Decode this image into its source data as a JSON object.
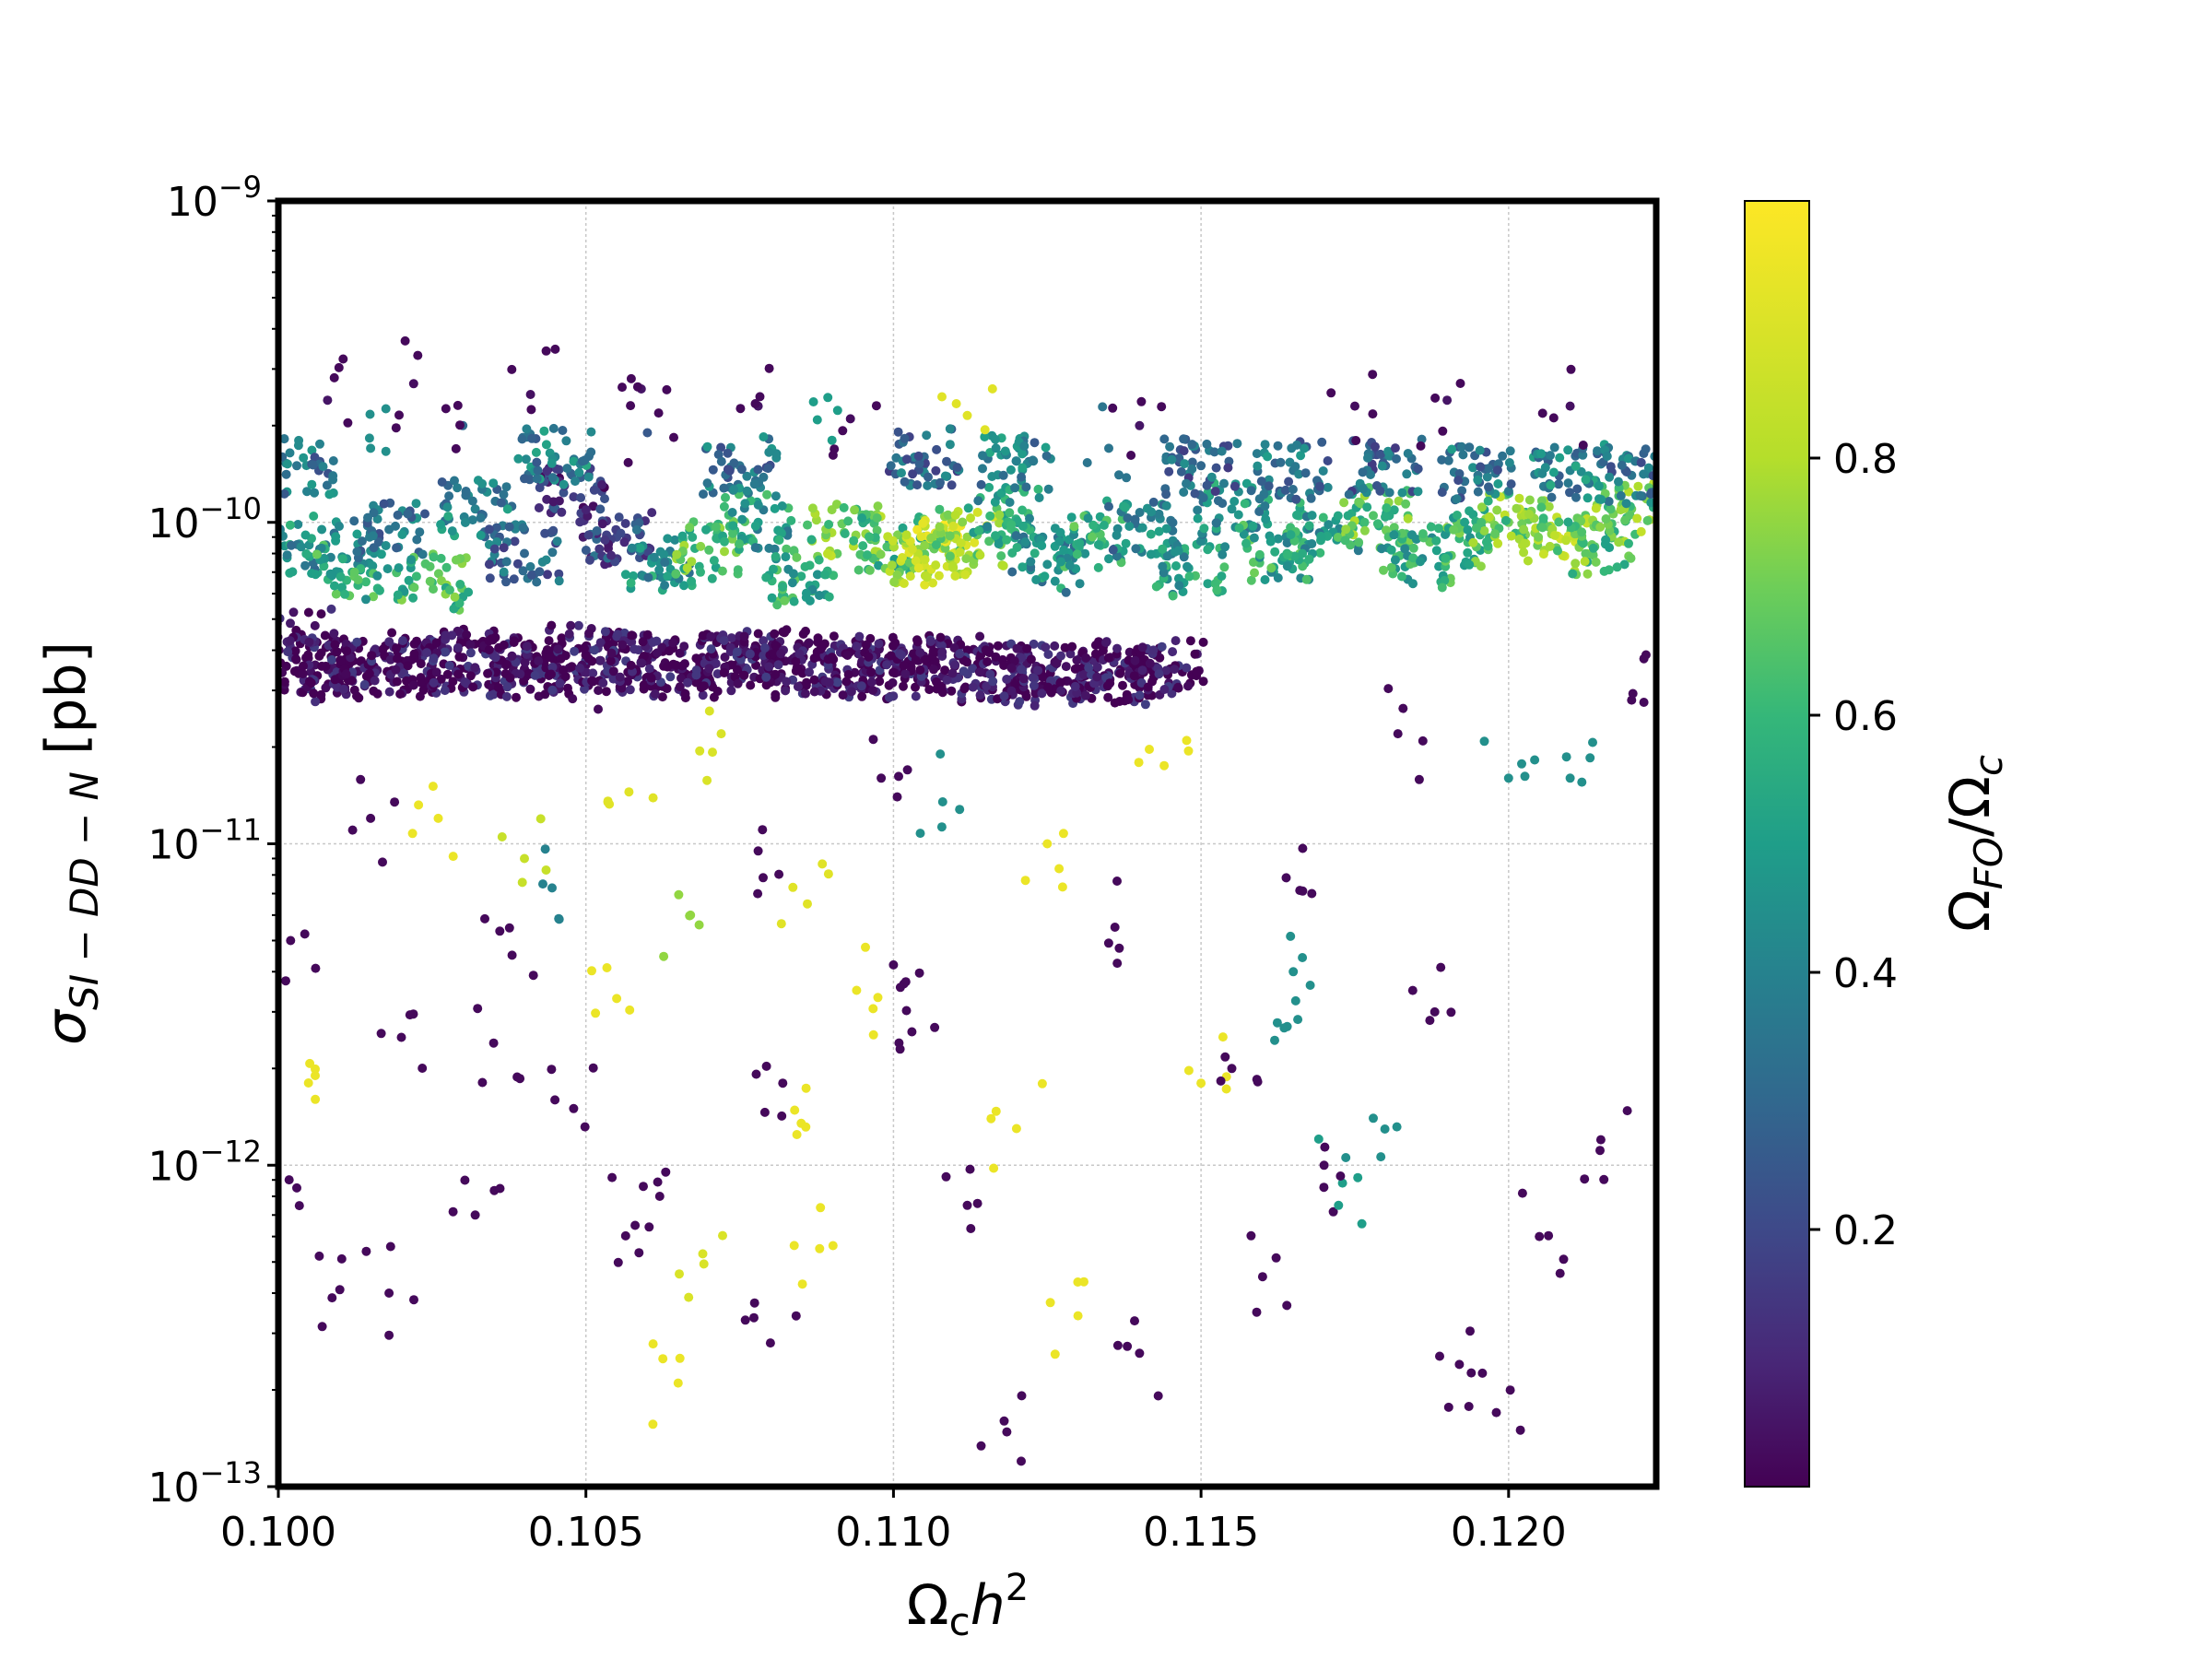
{
  "chart_data": {
    "type": "scatter",
    "title": "",
    "xlabel": {
      "base": "Ω",
      "sub": "c",
      "main": "h",
      "sup": "2"
    },
    "ylabel": {
      "base": "σ",
      "sub": "SI − DD − N",
      "unit": "[pb]"
    },
    "colorbar_label": {
      "part1": "Ω",
      "sub1": "FO",
      "slash": "/Ω",
      "sub2": "c"
    },
    "xlim": [
      0.1,
      0.1224
    ],
    "ylim": [
      1e-13,
      1e-09
    ],
    "yscale": "log",
    "grid": true,
    "colormap": "viridis",
    "color_range": [
      0.0,
      1.0
    ],
    "x_ticks": [
      {
        "value": 0.1,
        "label": "0.100"
      },
      {
        "value": 0.105,
        "label": "0.105"
      },
      {
        "value": 0.11,
        "label": "0.110"
      },
      {
        "value": 0.115,
        "label": "0.115"
      },
      {
        "value": 0.12,
        "label": "0.120"
      }
    ],
    "y_ticks": [
      {
        "value": 1e-09,
        "base": "10",
        "exp": "−9"
      },
      {
        "value": 1e-10,
        "base": "10",
        "exp": "−10"
      },
      {
        "value": 1e-11,
        "base": "10",
        "exp": "−11"
      },
      {
        "value": 1e-12,
        "base": "10",
        "exp": "−12"
      },
      {
        "value": 1e-13,
        "base": "10",
        "exp": "−13"
      }
    ],
    "colorbar_ticks": [
      {
        "value": 0.2,
        "label": "0.2"
      },
      {
        "value": 0.4,
        "label": "0.4"
      },
      {
        "value": 0.6,
        "label": "0.6"
      },
      {
        "value": 0.8,
        "label": "0.8"
      }
    ],
    "series": [
      {
        "points": [
          [
            0.1003,
            4.5e-11,
            0.02
          ],
          [
            0.1006,
            3.6e-11,
            0.03
          ],
          [
            0.101,
            3.4e-11,
            0.02
          ],
          [
            0.1015,
            3.7e-11,
            0.02
          ],
          [
            0.102,
            3.5e-11,
            0.03
          ],
          [
            0.1025,
            3.6e-11,
            0.02
          ],
          [
            0.103,
            3.8e-11,
            0.02
          ],
          [
            0.1035,
            3.6e-11,
            0.02
          ],
          [
            0.104,
            3.5e-11,
            0.02
          ],
          [
            0.1045,
            3.9e-11,
            0.03
          ],
          [
            0.105,
            3.6e-11,
            0.02
          ],
          [
            0.1055,
            3.8e-11,
            0.02
          ],
          [
            0.106,
            3.7e-11,
            0.02
          ],
          [
            0.1065,
            3.5e-11,
            0.02
          ],
          [
            0.107,
            3.6e-11,
            0.02
          ],
          [
            0.1075,
            3.7e-11,
            0.03
          ],
          [
            0.108,
            3.8e-11,
            0.02
          ],
          [
            0.1085,
            3.5e-11,
            0.02
          ],
          [
            0.109,
            3.6e-11,
            0.02
          ],
          [
            0.1095,
            3.4e-11,
            0.03
          ],
          [
            0.11,
            3.7e-11,
            0.02
          ],
          [
            0.1105,
            3.5e-11,
            0.02
          ],
          [
            0.111,
            3.6e-11,
            0.02
          ],
          [
            0.1115,
            3.4e-11,
            0.03
          ],
          [
            0.112,
            3.5e-11,
            0.02
          ],
          [
            0.1125,
            3.3e-11,
            0.02
          ],
          [
            0.113,
            3.5e-11,
            0.02
          ],
          [
            0.1135,
            3.4e-11,
            0.03
          ],
          [
            0.114,
            3.3e-11,
            0.02
          ],
          [
            0.1145,
            3.5e-11,
            0.02
          ],
          [
            0.1005,
            8.5e-11,
            0.45
          ],
          [
            0.1012,
            7e-11,
            0.55
          ],
          [
            0.1018,
            9.5e-11,
            0.35
          ],
          [
            0.1025,
            6.5e-11,
            0.6
          ],
          [
            0.1032,
            1.1e-10,
            0.4
          ],
          [
            0.104,
            8e-11,
            0.3
          ],
          [
            0.1048,
            1.2e-10,
            0.15
          ],
          [
            0.1055,
            9e-11,
            0.2
          ],
          [
            0.1062,
            7.5e-11,
            0.45
          ],
          [
            0.107,
            8.2e-11,
            0.65
          ],
          [
            0.1078,
            1e-10,
            0.5
          ],
          [
            0.1085,
            6.8e-11,
            0.55
          ],
          [
            0.1092,
            9.3e-11,
            0.7
          ],
          [
            0.11,
            8.6e-11,
            0.6
          ],
          [
            0.1105,
            7.8e-11,
            0.82
          ],
          [
            0.1108,
            8.3e-11,
            0.88
          ],
          [
            0.1112,
            9e-11,
            0.75
          ],
          [
            0.1118,
            1.05e-10,
            0.5
          ],
          [
            0.1125,
            7.4e-11,
            0.45
          ],
          [
            0.1132,
            8.8e-11,
            0.55
          ],
          [
            0.114,
            9.6e-11,
            0.4
          ],
          [
            0.1148,
            7.2e-11,
            0.5
          ],
          [
            0.1155,
            1.1e-10,
            0.45
          ],
          [
            0.1162,
            8.1e-11,
            0.55
          ],
          [
            0.117,
            9.4e-11,
            0.5
          ],
          [
            0.1178,
            1.05e-10,
            0.65
          ],
          [
            0.1185,
            7.6e-11,
            0.55
          ],
          [
            0.1192,
            8.9e-11,
            0.6
          ],
          [
            0.12,
            1e-10,
            0.7
          ],
          [
            0.1207,
            9.2e-11,
            0.75
          ],
          [
            0.1214,
            8.4e-11,
            0.65
          ],
          [
            0.122,
            1.1e-10,
            0.7
          ],
          [
            0.1003,
            1.5e-10,
            0.35
          ],
          [
            0.1015,
            1.7e-10,
            0.45
          ],
          [
            0.103,
            2e-10,
            0.3
          ],
          [
            0.1045,
            1.6e-10,
            0.4
          ],
          [
            0.106,
            1.9e-10,
            0.25
          ],
          [
            0.1075,
            1.5e-10,
            0.35
          ],
          [
            0.109,
            1.8e-10,
            0.5
          ],
          [
            0.1105,
            1.6e-10,
            0.3
          ],
          [
            0.112,
            1.55e-10,
            0.4
          ],
          [
            0.1135,
            1.7e-10,
            0.35
          ],
          [
            0.115,
            1.5e-10,
            0.3
          ],
          [
            0.1165,
            1.45e-10,
            0.35
          ],
          [
            0.118,
            1.5e-10,
            0.3
          ],
          [
            0.1195,
            1.4e-10,
            0.35
          ],
          [
            0.121,
            1.45e-10,
            0.4
          ],
          [
            0.122,
            1.4e-10,
            0.35
          ],
          [
            0.1008,
            2.4e-10,
            0.05
          ],
          [
            0.1022,
            2.7e-10,
            0.03
          ],
          [
            0.1041,
            2.5e-10,
            0.04
          ],
          [
            0.1059,
            2.6e-10,
            0.05
          ],
          [
            0.1078,
            2.3e-10,
            0.05
          ],
          [
            0.1093,
            2.1e-10,
            0.03
          ],
          [
            0.1112,
            2.15e-10,
            0.92
          ],
          [
            0.114,
            2e-10,
            0.05
          ],
          [
            0.1175,
            2.3e-10,
            0.03
          ],
          [
            0.119,
            2.4e-10,
            0.05
          ],
          [
            0.121,
            2.3e-10,
            0.04
          ],
          [
            0.1002,
            5e-12,
            0.02
          ],
          [
            0.1006,
            1.9e-12,
            0.95
          ],
          [
            0.101,
            4.1e-13,
            0.02
          ],
          [
            0.1015,
            1.2e-11,
            0.02
          ],
          [
            0.102,
            2.5e-12,
            0.02
          ],
          [
            0.1026,
            1.2e-11,
            0.95
          ],
          [
            0.1032,
            7e-13,
            0.02
          ],
          [
            0.1038,
            4.5e-12,
            0.02
          ],
          [
            0.104,
            9e-12,
            0.85
          ],
          [
            0.1043,
            7.5e-12,
            0.4
          ],
          [
            0.1048,
            1.5e-12,
            0.02
          ],
          [
            0.1052,
            3e-11,
            0.02
          ],
          [
            0.1055,
            3.3e-12,
            0.95
          ],
          [
            0.1057,
            1.45e-11,
            0.92
          ],
          [
            0.1062,
            8e-13,
            0.02
          ],
          [
            0.1065,
            2.1e-13,
            0.95
          ],
          [
            0.1067,
            6e-12,
            0.75
          ],
          [
            0.1069,
            5.3e-13,
            0.9
          ],
          [
            0.1072,
            2.2e-11,
            0.9
          ],
          [
            0.1078,
            9.5e-12,
            0.02
          ],
          [
            0.1082,
            1.8e-12,
            0.02
          ],
          [
            0.1085,
            1.35e-12,
            0.95
          ],
          [
            0.1086,
            6.5e-12,
            0.92
          ],
          [
            0.1088,
            5.5e-13,
            0.95
          ],
          [
            0.1094,
            3.5e-12,
            0.95
          ],
          [
            0.1098,
            1.6e-11,
            0.02
          ],
          [
            0.1103,
            2.6e-12,
            0.02
          ],
          [
            0.1108,
            1.35e-11,
            0.45
          ],
          [
            0.1112,
            7.5e-13,
            0.02
          ],
          [
            0.112,
            1.3e-12,
            0.95
          ],
          [
            0.1125,
            1e-11,
            0.95
          ],
          [
            0.113,
            3.4e-13,
            0.95
          ],
          [
            0.1136,
            5.5e-12,
            0.02
          ],
          [
            0.1144,
            1.75e-11,
            0.95
          ],
          [
            0.115,
            1.8e-12,
            0.95
          ],
          [
            0.1155,
            2e-12,
            0.02
          ],
          [
            0.116,
            4.5e-13,
            0.02
          ],
          [
            0.1164,
            2.7e-12,
            0.45
          ],
          [
            0.1165,
            4e-12,
            0.45
          ],
          [
            0.117,
            1e-12,
            0.02
          ],
          [
            0.1173,
            8.8e-13,
            0.5
          ],
          [
            0.1178,
            1.4e-12,
            0.45
          ],
          [
            0.1182,
            2.2e-11,
            0.02
          ],
          [
            0.1188,
            3e-12,
            0.02
          ],
          [
            0.1192,
            2.4e-13,
            0.02
          ],
          [
            0.12,
            1.6e-11,
            0.45
          ],
          [
            0.1205,
            6e-13,
            0.02
          ],
          [
            0.121,
            1.6e-11,
            0.45
          ],
          [
            0.1215,
            1.2e-12,
            0.02
          ],
          [
            0.122,
            2.8e-11,
            0.02
          ],
          [
            0.1003,
            8.5e-13,
            0.02
          ],
          [
            0.1018,
            4e-13,
            0.02
          ],
          [
            0.1035,
            2.4e-12,
            0.02
          ],
          [
            0.1058,
            6.5e-13,
            0.02
          ],
          [
            0.108,
            2.8e-13,
            0.02
          ],
          [
            0.11,
            4.2e-12,
            0.02
          ],
          [
            0.1118,
            1.6e-13,
            0.02
          ],
          [
            0.114,
            2.6e-13,
            0.02
          ],
          [
            0.1168,
            7e-12,
            0.02
          ],
          [
            0.1198,
            1.7e-13,
            0.02
          ]
        ]
      }
    ]
  }
}
